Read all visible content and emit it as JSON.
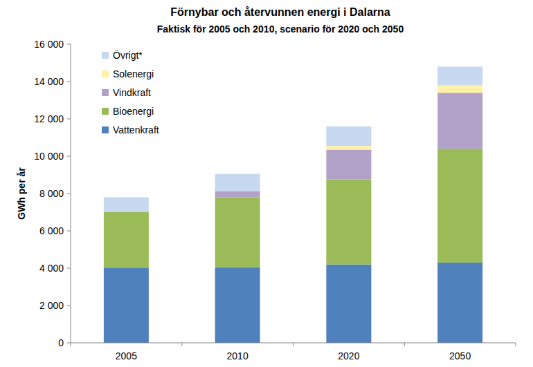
{
  "chart_data": {
    "type": "bar",
    "stacked": true,
    "grid": false,
    "legend": "upper left",
    "title": "Förnybar och återvunnen energi i Dalarna",
    "subtitle": "Faktisk för 2005 och 2010, scenario för 2020 och 2050",
    "ylabel": "GWh per år",
    "categories": [
      "2005",
      "2010",
      "2020",
      "2050"
    ],
    "series": [
      {
        "name": "Vattenkraft",
        "color": "#4f81bd",
        "values": [
          4000,
          4050,
          4200,
          4300
        ]
      },
      {
        "name": "Bioenergi",
        "color": "#9bbb59",
        "values": [
          3000,
          3750,
          4550,
          6100
        ]
      },
      {
        "name": "Vindkraft",
        "color": "#b3a2c7",
        "values": [
          0,
          330,
          1600,
          3000
        ]
      },
      {
        "name": "Solenergi",
        "color": "#fff2a6",
        "values": [
          0,
          0,
          200,
          400
        ]
      },
      {
        "name": "Övrigt*",
        "color": "#c6d9f1",
        "values": [
          800,
          920,
          1050,
          1000
        ]
      }
    ],
    "ylim": [
      0,
      16000
    ],
    "yticks": [
      0,
      {
        "value": 2000,
        "label": "2 000"
      },
      {
        "value": 4000,
        "label": "4 000"
      },
      {
        "value": 6000,
        "label": "6 000"
      },
      {
        "value": 8000,
        "label": "8 000"
      },
      {
        "value": 10000,
        "label": "10 000"
      },
      {
        "value": 12000,
        "label": "12 000"
      },
      {
        "value": 14000,
        "label": "14 000"
      },
      {
        "value": 16000,
        "label": "16 000"
      }
    ]
  }
}
